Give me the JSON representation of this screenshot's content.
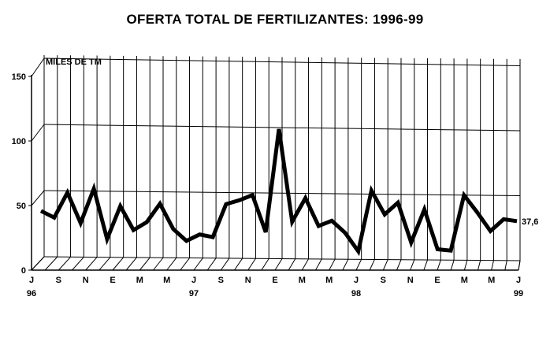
{
  "chart_data": {
    "type": "line",
    "title": "OFERTA TOTAL DE FERTILIZANTES: 1996-99",
    "ylabel": "MILES DE TM",
    "ylim": [
      0,
      150
    ],
    "yticks": [
      0,
      50,
      100,
      150
    ],
    "grid": true,
    "x_tick_labels": [
      "J",
      "S",
      "N",
      "E",
      "M",
      "M",
      "J",
      "S",
      "N",
      "E",
      "M",
      "M",
      "J",
      "S",
      "N",
      "E",
      "M",
      "M",
      "J"
    ],
    "year_labels": [
      {
        "index": 0,
        "label": "96"
      },
      {
        "index": 6,
        "label": "97"
      },
      {
        "index": 12,
        "label": "98"
      },
      {
        "index": 18,
        "label": "99"
      }
    ],
    "x": [
      "Jul-96",
      "Aug-96",
      "Sep-96",
      "Oct-96",
      "Nov-96",
      "Dec-96",
      "Jan-97",
      "Feb-97",
      "Mar-97",
      "Apr-97",
      "May-97",
      "Jun-97",
      "Jul-97",
      "Aug-97",
      "Sep-97",
      "Oct-97",
      "Nov-97",
      "Dec-97",
      "Jan-98",
      "Feb-98",
      "Mar-98",
      "Apr-98",
      "May-98",
      "Jun-98",
      "Jul-98",
      "Aug-98",
      "Sep-98",
      "Oct-98",
      "Nov-98",
      "Dec-98",
      "Jan-99",
      "Feb-99",
      "Mar-99",
      "Apr-99",
      "May-99",
      "Jun-99",
      "Jul-99"
    ],
    "series": [
      {
        "values": [
          43,
          38,
          57,
          34,
          60,
          22,
          47,
          29,
          35,
          49,
          30,
          21,
          26,
          24,
          49,
          52,
          56,
          28,
          106,
          36,
          54,
          33,
          37,
          28,
          14,
          60,
          42,
          51,
          21,
          46,
          16,
          15,
          57,
          44,
          30,
          39,
          37.6
        ]
      }
    ],
    "end_label": "37,6"
  }
}
